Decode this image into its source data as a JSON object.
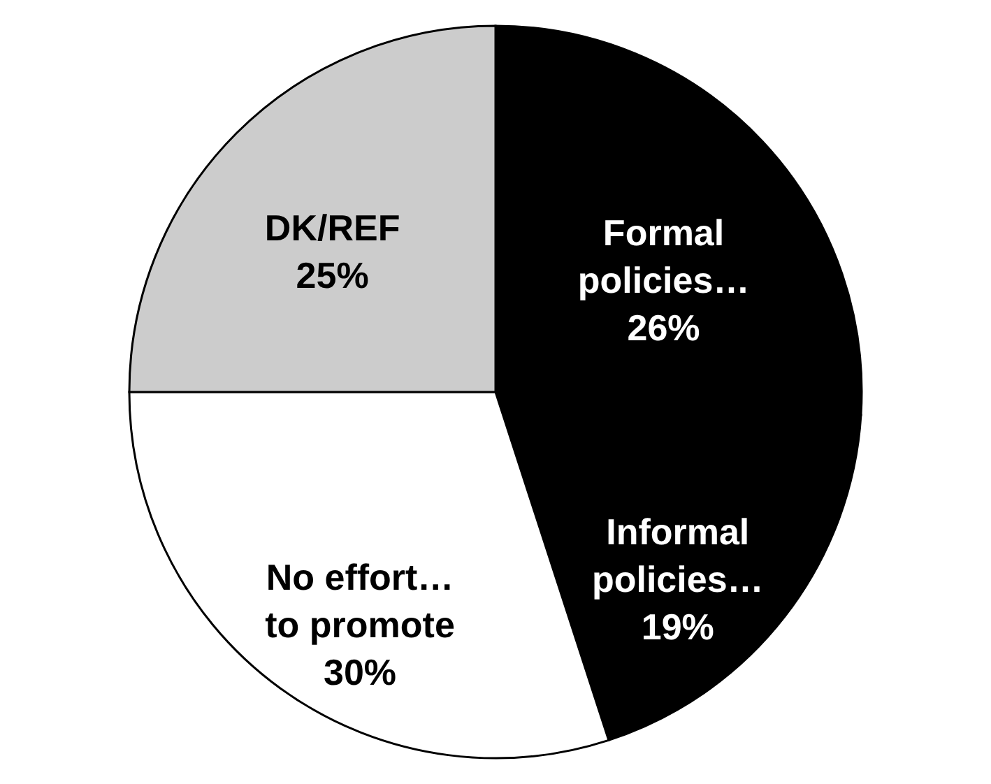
{
  "chart_data": {
    "type": "pie",
    "categories": [
      "Formal policies…",
      "Informal policies…",
      "No effort… to promote",
      "DK/REF"
    ],
    "values": [
      26,
      19,
      30,
      25
    ],
    "colors": [
      "#000000",
      "#000000",
      "#ffffff",
      "#cccccc"
    ],
    "value_labels": [
      "26%",
      "19%",
      "30%",
      "25%"
    ],
    "legend": false
  }
}
